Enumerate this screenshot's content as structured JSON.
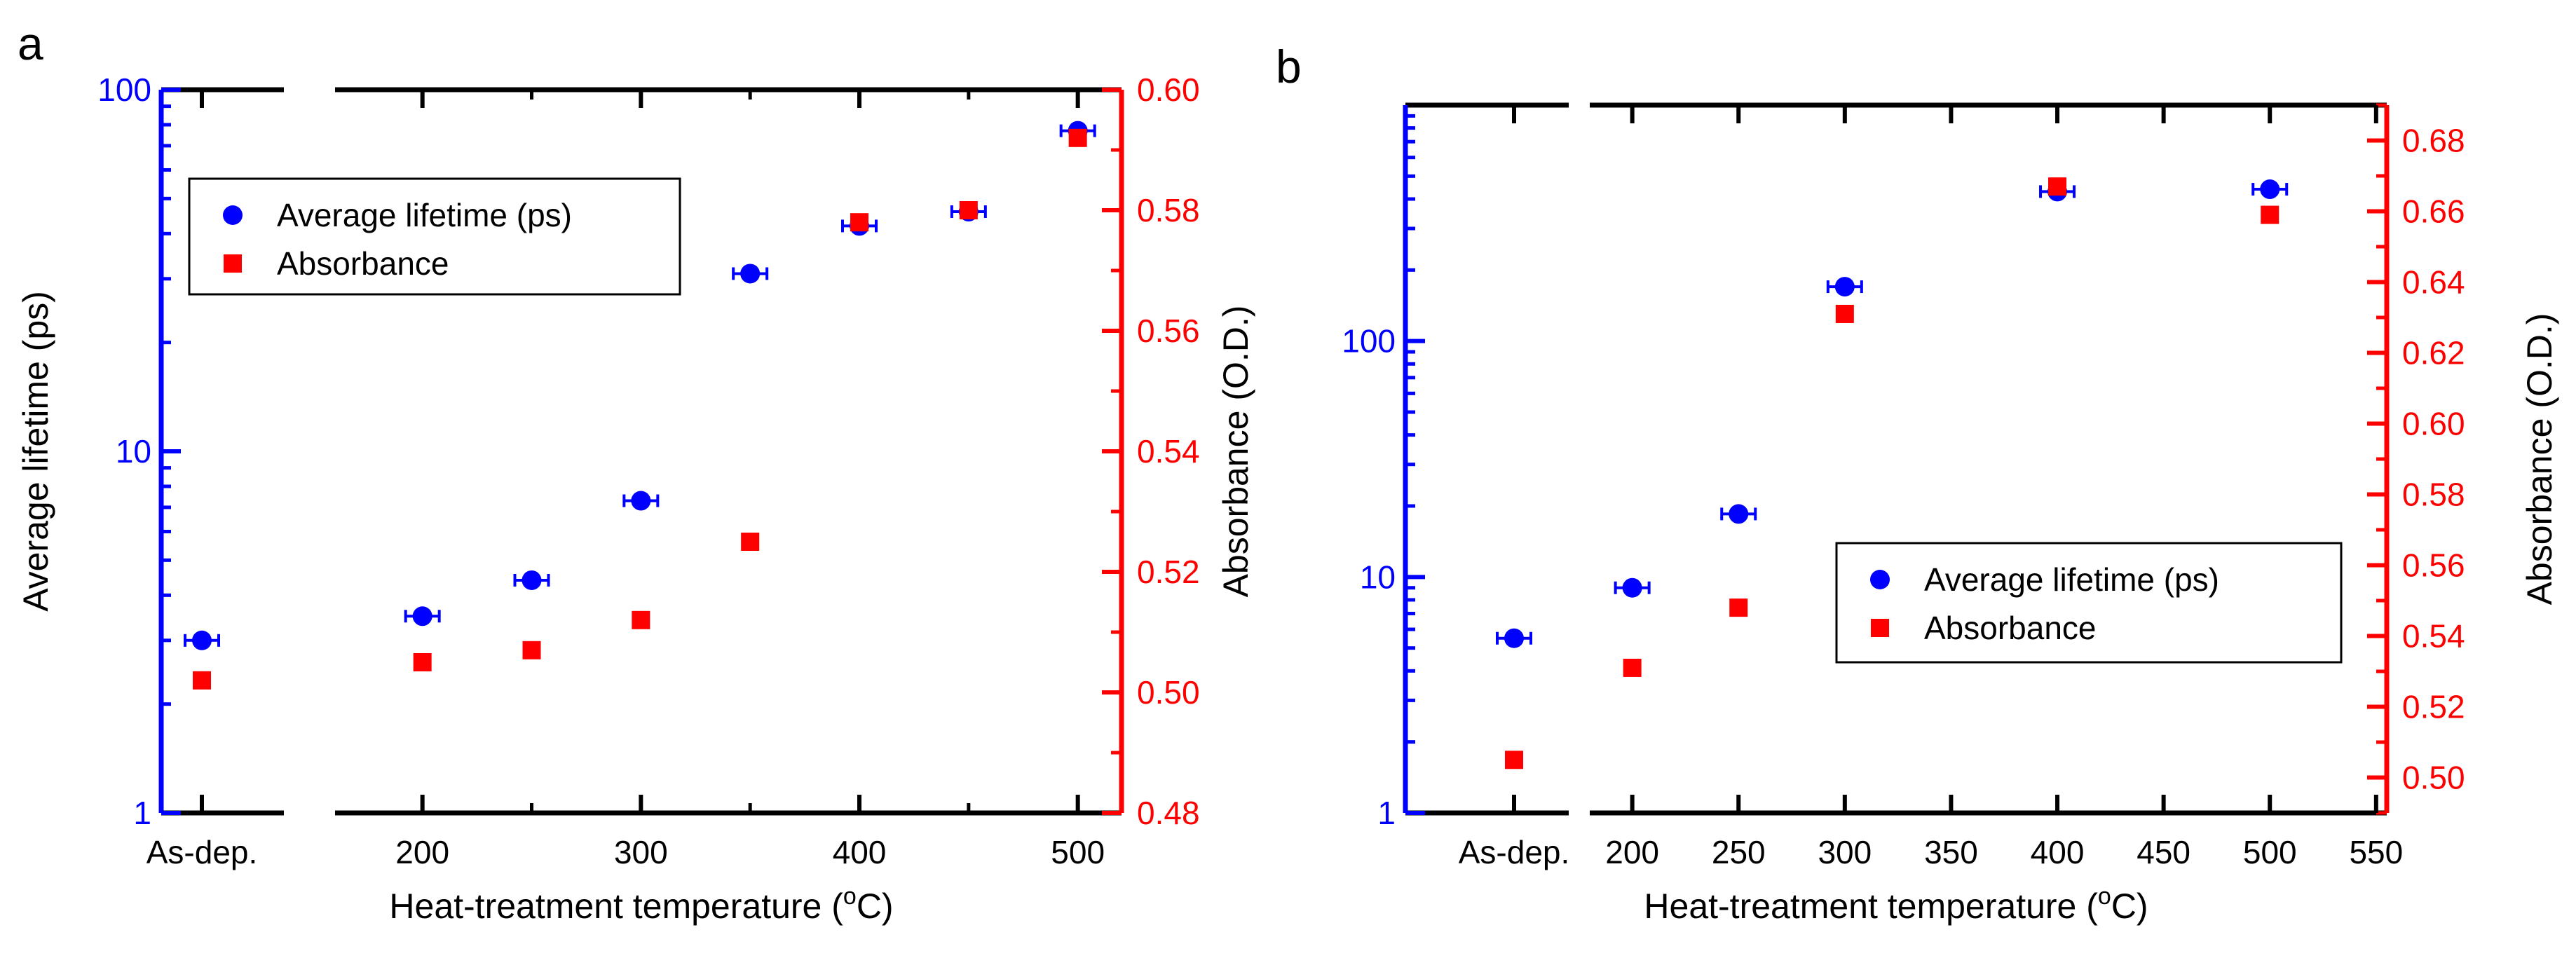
{
  "colors": {
    "left_axis": "#0000ff",
    "right_axis": "#ff0000",
    "frame": "#000000",
    "lifetime_marker": "#0000ff",
    "absorbance_marker": "#ff0000"
  },
  "chart_data": [
    {
      "panel_label": "a",
      "type": "scatter",
      "xlabel_prefix": "Heat-treatment temperature (",
      "xlabel_sup": "o",
      "xlabel_suffix": "C)",
      "ylabel_left": "Average lifetime (ps)",
      "ylabel_right": "Absorbance (O.D.)",
      "x_break": true,
      "x_category": "As-dep.",
      "x_ticks": [
        200,
        300,
        400,
        500
      ],
      "x_tick_labels": [
        "200",
        "300",
        "400",
        "500"
      ],
      "xlim": [
        160,
        520
      ],
      "y_left_scale": "log",
      "y_left_lim": [
        1,
        100
      ],
      "y_left_ticks": [
        1,
        10,
        100
      ],
      "y_left_tick_labels": [
        "1",
        "10",
        "100"
      ],
      "y_right_lim": [
        0.48,
        0.6
      ],
      "y_right_ticks": [
        0.48,
        0.5,
        0.52,
        0.54,
        0.56,
        0.58,
        0.6
      ],
      "y_right_tick_labels": [
        "0.48",
        "0.50",
        "0.52",
        "0.54",
        "0.56",
        "0.58",
        "0.60"
      ],
      "legend": {
        "position": "top-left",
        "entries": [
          "Average lifetime (ps)",
          "Absorbance"
        ]
      },
      "series": [
        {
          "name": "Average lifetime (ps)",
          "axis": "left",
          "marker": "circle",
          "x": [
            "As-dep.",
            200,
            250,
            300,
            350,
            400,
            450,
            500
          ],
          "values": [
            3.0,
            3.5,
            4.4,
            7.3,
            31,
            42,
            46,
            77
          ]
        },
        {
          "name": "Absorbance",
          "axis": "right",
          "marker": "square",
          "x": [
            "As-dep.",
            200,
            250,
            300,
            350,
            400,
            450,
            500
          ],
          "values": [
            0.502,
            0.505,
            0.507,
            0.512,
            0.525,
            0.578,
            0.58,
            0.592
          ]
        }
      ]
    },
    {
      "panel_label": "b",
      "type": "scatter",
      "xlabel_prefix": "Heat-treatment temperature (",
      "xlabel_sup": "o",
      "xlabel_suffix": "C)",
      "ylabel_left": "",
      "ylabel_right": "Absorbance (O.D.)",
      "x_break": true,
      "x_category": "As-dep.",
      "x_ticks": [
        200,
        250,
        300,
        350,
        400,
        450,
        500,
        550
      ],
      "x_tick_labels": [
        "200",
        "250",
        "300",
        "350",
        "400",
        "450",
        "500",
        "550"
      ],
      "xlim": [
        180,
        555
      ],
      "y_left_scale": "log",
      "y_left_lim": [
        1,
        1000
      ],
      "y_left_ticks": [
        1,
        10,
        100
      ],
      "y_left_tick_labels": [
        "1",
        "10",
        "100"
      ],
      "y_right_lim": [
        0.49,
        0.69
      ],
      "y_right_ticks": [
        0.5,
        0.52,
        0.54,
        0.56,
        0.58,
        0.6,
        0.62,
        0.64,
        0.66,
        0.68
      ],
      "y_right_tick_labels": [
        "0.50",
        "0.52",
        "0.54",
        "0.56",
        "0.58",
        "0.60",
        "0.62",
        "0.64",
        "0.66",
        "0.68"
      ],
      "legend": {
        "position": "bottom-right",
        "entries": [
          "Average lifetime (ps)",
          "Absorbance"
        ]
      },
      "series": [
        {
          "name": "Average lifetime (ps)",
          "axis": "left",
          "marker": "circle",
          "x": [
            "As-dep.",
            200,
            250,
            300,
            400,
            500
          ],
          "values": [
            5.5,
            9.0,
            18.5,
            170,
            430,
            440
          ]
        },
        {
          "name": "Absorbance",
          "axis": "right",
          "marker": "square",
          "x": [
            "As-dep.",
            200,
            250,
            300,
            400,
            500
          ],
          "values": [
            0.505,
            0.531,
            0.548,
            0.631,
            0.667,
            0.659
          ]
        }
      ]
    }
  ]
}
